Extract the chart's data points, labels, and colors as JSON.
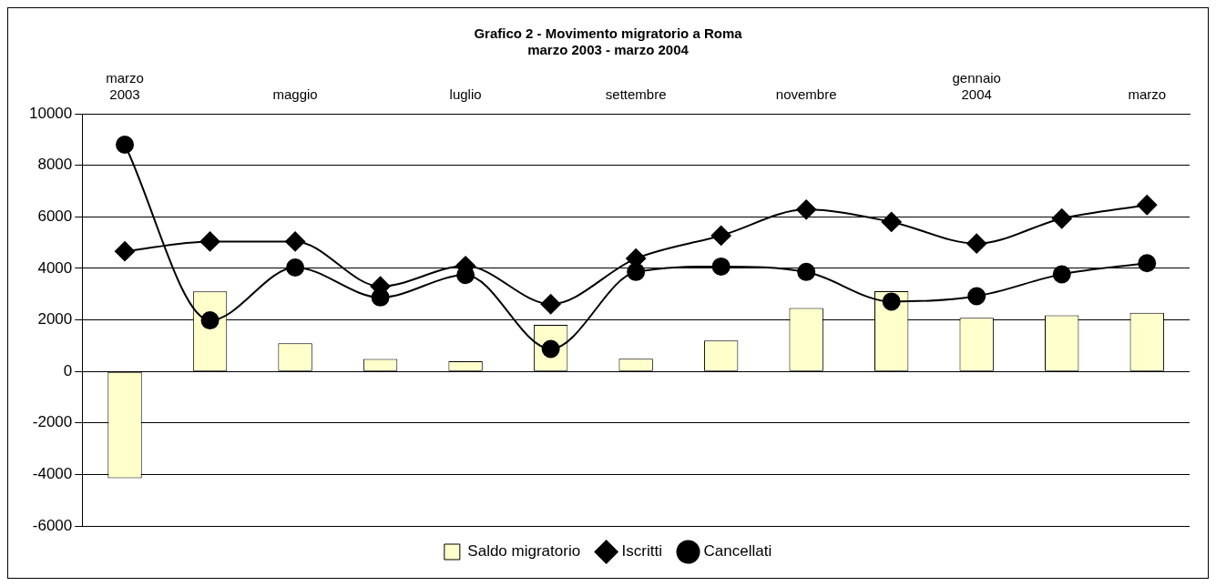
{
  "chart_data": {
    "type": "bar",
    "title": "Grafico 2 - Movimento migratorio a Roma",
    "subtitle": "marzo 2003 - marzo 2004",
    "categories": [
      "marzo 2003",
      null,
      "maggio",
      null,
      "luglio",
      null,
      "settembre",
      null,
      "novembre",
      null,
      "gennaio 2004",
      null,
      "marzo"
    ],
    "series": [
      {
        "name": "Saldo migratorio",
        "color": "#ffffcc",
        "values": [
          -4150,
          3100,
          1090,
          480,
          390,
          1810,
          490,
          1200,
          2460,
          3110,
          2080,
          2180,
          2270
        ]
      },
      {
        "name": "Iscritti",
        "type": "line",
        "color": "#000000",
        "marker": "diamond",
        "values": [
          4660,
          5040,
          5040,
          3300,
          4090,
          2610,
          4380,
          5270,
          6280,
          5800,
          4960,
          5930,
          6460
        ]
      },
      {
        "name": "Cancellati",
        "type": "line",
        "color": "#000000",
        "marker": "circle",
        "values": [
          8800,
          1980,
          4030,
          2870,
          3740,
          870,
          3860,
          4070,
          3860,
          2710,
          2920,
          3770,
          4200
        ]
      }
    ],
    "ylim": [
      -6000,
      10000
    ],
    "yticks": [
      -6000,
      -4000,
      -2000,
      0,
      2000,
      4000,
      6000,
      8000,
      10000
    ],
    "grid": "y",
    "legend": "bottom"
  }
}
